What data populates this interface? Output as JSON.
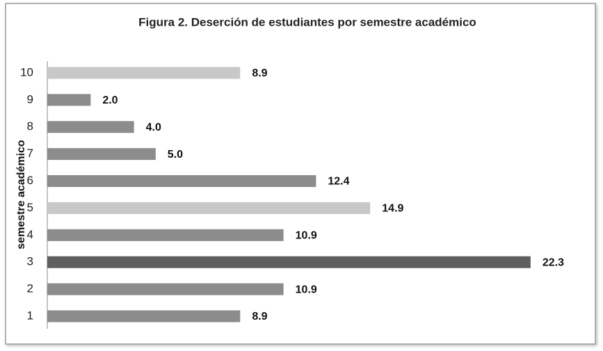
{
  "chart_data": {
    "type": "bar",
    "orientation": "horizontal",
    "title": "Figura 2. Deserción de estudiantes por semestre académico",
    "y_label": "semestre académico",
    "categories": [
      "1",
      "2",
      "3",
      "4",
      "5",
      "6",
      "7",
      "8",
      "9",
      "10"
    ],
    "values": [
      8.9,
      10.9,
      22.3,
      10.9,
      14.9,
      12.4,
      5.0,
      4.0,
      2.0,
      8.9
    ],
    "value_labels": [
      "8.9",
      "10.9",
      "22.3",
      "10.9",
      "14.9",
      "12.4",
      "5.0",
      "4.0",
      "2.0",
      "8.9"
    ],
    "colors": [
      "#8c8c8c",
      "#8c8c8c",
      "#5f5f5f",
      "#8c8c8c",
      "#c8c8c8",
      "#8c8c8c",
      "#8c8c8c",
      "#8c8c8c",
      "#8c8c8c",
      "#c8c8c8"
    ],
    "xlim": [
      0,
      25
    ]
  }
}
